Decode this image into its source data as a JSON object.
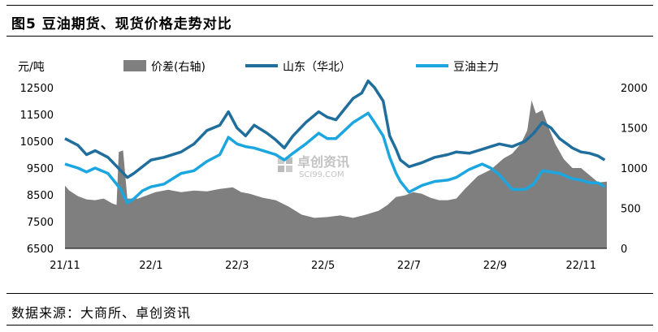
{
  "figure": {
    "title": "图5 豆油期货、现货价格走势对比",
    "source": "数据来源：大商所、卓创资讯"
  },
  "watermark": {
    "brand": "卓创资讯",
    "site": "SCI99.COM"
  },
  "chart_data": {
    "type": "line",
    "title": "",
    "x_ticks": [
      "21/11",
      "22/1",
      "22/3",
      "22/5",
      "22/7",
      "22/9",
      "22/11"
    ],
    "x_tick_months": [
      0,
      2,
      4,
      6,
      8,
      10,
      12
    ],
    "x_range_months": [
      0,
      12.6
    ],
    "y_left": {
      "unit_label": "元/吨",
      "range": [
        6500,
        12500
      ],
      "ticks": [
        6500,
        7500,
        8500,
        9500,
        10500,
        11500,
        12500
      ]
    },
    "y_right": {
      "range": [
        0,
        2000
      ],
      "ticks": [
        0,
        500,
        1000,
        1500,
        2000
      ]
    },
    "legend_position": "top",
    "grid": false,
    "series": [
      {
        "name": "价差(右轴)",
        "kind": "area",
        "axis": "right",
        "color": "#7f7f7f",
        "points": [
          [
            0,
            780
          ],
          [
            0.1,
            720
          ],
          [
            0.3,
            650
          ],
          [
            0.5,
            610
          ],
          [
            0.7,
            600
          ],
          [
            0.9,
            620
          ],
          [
            1.1,
            560
          ],
          [
            1.2,
            540
          ],
          [
            1.25,
            1200
          ],
          [
            1.35,
            1220
          ],
          [
            1.45,
            620
          ],
          [
            1.55,
            620
          ],
          [
            1.7,
            620
          ],
          [
            1.9,
            660
          ],
          [
            2.1,
            700
          ],
          [
            2.4,
            730
          ],
          [
            2.7,
            700
          ],
          [
            3.0,
            720
          ],
          [
            3.3,
            710
          ],
          [
            3.6,
            740
          ],
          [
            3.9,
            760
          ],
          [
            4.1,
            700
          ],
          [
            4.3,
            680
          ],
          [
            4.6,
            630
          ],
          [
            4.9,
            600
          ],
          [
            5.2,
            520
          ],
          [
            5.5,
            420
          ],
          [
            5.8,
            380
          ],
          [
            6.1,
            390
          ],
          [
            6.4,
            410
          ],
          [
            6.7,
            380
          ],
          [
            7.0,
            420
          ],
          [
            7.3,
            470
          ],
          [
            7.5,
            540
          ],
          [
            7.7,
            640
          ],
          [
            7.9,
            660
          ],
          [
            8.1,
            700
          ],
          [
            8.3,
            680
          ],
          [
            8.5,
            630
          ],
          [
            8.7,
            600
          ],
          [
            8.9,
            600
          ],
          [
            9.1,
            620
          ],
          [
            9.3,
            740
          ],
          [
            9.6,
            900
          ],
          [
            9.9,
            980
          ],
          [
            10.2,
            1120
          ],
          [
            10.4,
            1180
          ],
          [
            10.6,
            1300
          ],
          [
            10.75,
            1470
          ],
          [
            10.85,
            1840
          ],
          [
            10.95,
            1680
          ],
          [
            11.1,
            1720
          ],
          [
            11.25,
            1500
          ],
          [
            11.4,
            1300
          ],
          [
            11.6,
            1110
          ],
          [
            11.8,
            1000
          ],
          [
            12.0,
            1000
          ],
          [
            12.2,
            910
          ],
          [
            12.4,
            820
          ],
          [
            12.6,
            830
          ]
        ]
      },
      {
        "name": "山东（华北）",
        "kind": "line",
        "axis": "left",
        "color": "#1f6e9c",
        "points": [
          [
            0,
            10600
          ],
          [
            0.3,
            10350
          ],
          [
            0.5,
            10000
          ],
          [
            0.7,
            10150
          ],
          [
            1.0,
            9900
          ],
          [
            1.3,
            9400
          ],
          [
            1.45,
            9150
          ],
          [
            1.6,
            9300
          ],
          [
            1.8,
            9550
          ],
          [
            2.0,
            9800
          ],
          [
            2.3,
            9900
          ],
          [
            2.7,
            10100
          ],
          [
            3.0,
            10400
          ],
          [
            3.3,
            10900
          ],
          [
            3.6,
            11100
          ],
          [
            3.8,
            11600
          ],
          [
            4.0,
            11000
          ],
          [
            4.2,
            10700
          ],
          [
            4.4,
            11100
          ],
          [
            4.7,
            10800
          ],
          [
            4.9,
            10550
          ],
          [
            5.1,
            10250
          ],
          [
            5.3,
            10700
          ],
          [
            5.6,
            11200
          ],
          [
            5.9,
            11600
          ],
          [
            6.1,
            11400
          ],
          [
            6.3,
            11300
          ],
          [
            6.5,
            11700
          ],
          [
            6.7,
            12100
          ],
          [
            6.9,
            12300
          ],
          [
            7.05,
            12750
          ],
          [
            7.2,
            12500
          ],
          [
            7.4,
            12000
          ],
          [
            7.55,
            10700
          ],
          [
            7.7,
            10200
          ],
          [
            7.8,
            9800
          ],
          [
            8.0,
            9550
          ],
          [
            8.3,
            9700
          ],
          [
            8.6,
            9900
          ],
          [
            8.9,
            10000
          ],
          [
            9.1,
            10100
          ],
          [
            9.4,
            10050
          ],
          [
            9.7,
            10200
          ],
          [
            9.9,
            10300
          ],
          [
            10.1,
            10400
          ],
          [
            10.4,
            10300
          ],
          [
            10.7,
            10500
          ],
          [
            10.9,
            10800
          ],
          [
            11.1,
            11200
          ],
          [
            11.3,
            11000
          ],
          [
            11.5,
            10600
          ],
          [
            11.8,
            10250
          ],
          [
            12.0,
            10100
          ],
          [
            12.2,
            10050
          ],
          [
            12.4,
            9950
          ],
          [
            12.55,
            9800
          ]
        ]
      },
      {
        "name": "豆油主力",
        "kind": "line",
        "axis": "left",
        "color": "#1ca6e0",
        "points": [
          [
            0,
            9650
          ],
          [
            0.3,
            9500
          ],
          [
            0.5,
            9350
          ],
          [
            0.7,
            9500
          ],
          [
            1.0,
            9300
          ],
          [
            1.3,
            8700
          ],
          [
            1.45,
            8200
          ],
          [
            1.6,
            8350
          ],
          [
            1.8,
            8650
          ],
          [
            2.0,
            8800
          ],
          [
            2.3,
            8900
          ],
          [
            2.7,
            9300
          ],
          [
            3.0,
            9400
          ],
          [
            3.3,
            9750
          ],
          [
            3.6,
            10000
          ],
          [
            3.8,
            10650
          ],
          [
            4.0,
            10400
          ],
          [
            4.2,
            10300
          ],
          [
            4.4,
            10250
          ],
          [
            4.7,
            10100
          ],
          [
            4.9,
            10000
          ],
          [
            5.1,
            9800
          ],
          [
            5.3,
            10050
          ],
          [
            5.6,
            10400
          ],
          [
            5.9,
            10800
          ],
          [
            6.1,
            10600
          ],
          [
            6.3,
            10600
          ],
          [
            6.5,
            10900
          ],
          [
            6.7,
            11200
          ],
          [
            6.9,
            11400
          ],
          [
            7.05,
            11550
          ],
          [
            7.2,
            11200
          ],
          [
            7.4,
            10700
          ],
          [
            7.55,
            9900
          ],
          [
            7.7,
            9300
          ],
          [
            7.8,
            9000
          ],
          [
            8.0,
            8600
          ],
          [
            8.3,
            8850
          ],
          [
            8.6,
            9000
          ],
          [
            8.9,
            9050
          ],
          [
            9.1,
            9150
          ],
          [
            9.4,
            9450
          ],
          [
            9.7,
            9650
          ],
          [
            9.9,
            9500
          ],
          [
            10.1,
            9250
          ],
          [
            10.4,
            8700
          ],
          [
            10.7,
            8700
          ],
          [
            10.9,
            8900
          ],
          [
            11.1,
            9400
          ],
          [
            11.3,
            9350
          ],
          [
            11.5,
            9300
          ],
          [
            11.8,
            9100
          ],
          [
            12.0,
            9050
          ],
          [
            12.2,
            8950
          ],
          [
            12.4,
            8950
          ],
          [
            12.55,
            8800
          ]
        ]
      }
    ]
  }
}
